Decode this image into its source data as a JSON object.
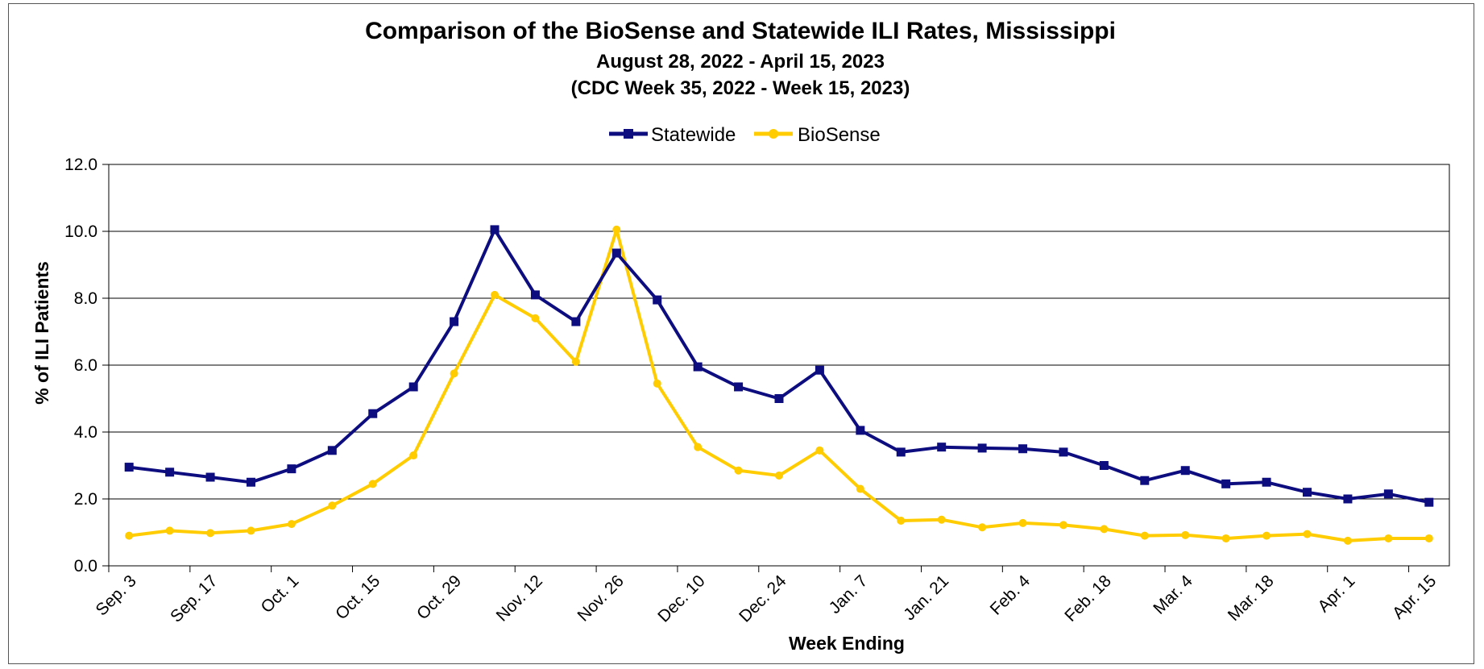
{
  "chart_data": {
    "type": "line",
    "title": "Comparison of the BioSense and Statewide ILI Rates, Mississippi",
    "subtitle_lines": [
      "August 28, 2022 - April 15, 2023",
      "(CDC Week 35, 2022 - Week 15, 2023)"
    ],
    "xlabel": "Week Ending",
    "ylabel": "% of ILI Patients",
    "ylim": [
      0,
      12
    ],
    "yticks": [
      "0.0",
      "2.0",
      "4.0",
      "6.0",
      "8.0",
      "10.0",
      "12.0"
    ],
    "grid": "horizontal",
    "legend_position": "top-center",
    "x_tick_labels": [
      "Sep. 3",
      "Sep. 17",
      "Oct. 1",
      "Oct. 15",
      "Oct. 29",
      "Nov. 12",
      "Nov. 26",
      "Dec. 10",
      "Dec. 24",
      "Jan. 7",
      "Jan. 21",
      "Feb. 4",
      "Feb. 18",
      "Mar. 4",
      "Mar. 18",
      "Apr. 1",
      "Apr. 15"
    ],
    "categories": [
      "Sep. 3",
      "Sep. 10",
      "Sep. 17",
      "Sep. 24",
      "Oct. 1",
      "Oct. 8",
      "Oct. 15",
      "Oct. 22",
      "Oct. 29",
      "Nov. 5",
      "Nov. 12",
      "Nov. 19",
      "Nov. 26",
      "Dec. 3",
      "Dec. 10",
      "Dec. 17",
      "Dec. 24",
      "Dec. 31",
      "Jan. 7",
      "Jan. 14",
      "Jan. 21",
      "Jan. 28",
      "Feb. 4",
      "Feb. 11",
      "Feb. 18",
      "Feb. 25",
      "Mar. 4",
      "Mar. 11",
      "Mar. 18",
      "Mar. 25",
      "Apr. 1",
      "Apr. 8",
      "Apr. 15"
    ],
    "series": [
      {
        "name": "Statewide",
        "color": "#0d0d80",
        "marker": "square",
        "values": [
          2.95,
          2.8,
          2.65,
          2.5,
          2.9,
          3.45,
          4.55,
          5.35,
          7.3,
          10.05,
          8.1,
          7.3,
          9.35,
          7.95,
          5.95,
          5.35,
          5.0,
          5.85,
          4.05,
          3.4,
          3.55,
          3.52,
          3.5,
          3.4,
          3.0,
          2.55,
          2.85,
          2.45,
          2.5,
          2.2,
          2.0,
          2.15,
          1.9
        ]
      },
      {
        "name": "BioSense",
        "color": "#ffcc00",
        "marker": "circle",
        "values": [
          0.9,
          1.05,
          0.98,
          1.05,
          1.25,
          1.8,
          2.45,
          3.3,
          5.75,
          8.1,
          7.4,
          6.1,
          10.05,
          5.45,
          3.55,
          2.85,
          2.7,
          3.45,
          2.3,
          1.35,
          1.38,
          1.15,
          1.28,
          1.22,
          1.1,
          0.9,
          0.92,
          0.82,
          0.9,
          0.95,
          0.75,
          0.82,
          0.82
        ]
      }
    ]
  }
}
